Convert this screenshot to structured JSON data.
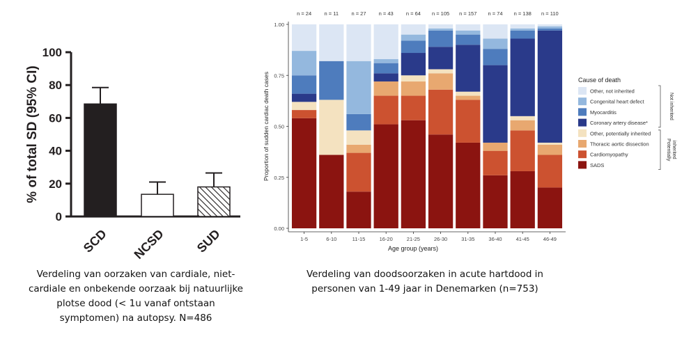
{
  "captions": {
    "left": "Verdeling van oorzaken van cardiale, niet-cardiale en onbekende oorzaak bij natuurlijke plotse dood (< 1u vanaf ontstaan symptomen) na autopsy. N=486",
    "right": "Verdeling van doodsoorzaken in acute hartdood in personen van 1-49 jaar in Denemarken (n=753)"
  },
  "chart_data": [
    {
      "type": "bar",
      "ylabel": "% of total SD (95% CI)",
      "ylim": [
        0,
        100
      ],
      "yticks": [
        "0",
        "20",
        "40",
        "60",
        "80",
        "100"
      ],
      "categories": [
        "SCD",
        "NCSD",
        "SUD"
      ],
      "values": [
        68.5,
        13.5,
        18
      ],
      "ci_upper": [
        78.5,
        21,
        26.5
      ],
      "fills": [
        "solid-black",
        "white",
        "hatched"
      ],
      "colors": {
        "solid": "#231f20",
        "outline": "#231f20"
      }
    },
    {
      "type": "bar",
      "stacked": true,
      "normalized": true,
      "xlabel": "Age group (years)",
      "ylabel": "Proportion of sudden cardiac death cases",
      "ylim": [
        0,
        1
      ],
      "yticks": [
        "0.00",
        "0.25",
        "0.50",
        "0.75",
        "1.00"
      ],
      "categories": [
        "1-5",
        "6-10",
        "11-15",
        "16-20",
        "21-25",
        "26-30",
        "31-35",
        "36-40",
        "41-45",
        "46-49"
      ],
      "n_labels": [
        "n = 24",
        "n = 11",
        "n = 27",
        "n = 43",
        "n = 64",
        "n = 105",
        "n = 157",
        "n = 74",
        "n = 138",
        "n = 110"
      ],
      "legend_title": "Cause of death",
      "legend_position": "right",
      "group_labels": [
        "Not inherited",
        "Potentially inherited"
      ],
      "series": [
        {
          "name": "SADS",
          "color": "#8b1410",
          "values": [
            0.54,
            0.36,
            0.18,
            0.51,
            0.53,
            0.46,
            0.42,
            0.26,
            0.28,
            0.2
          ]
        },
        {
          "name": "Cardiomyopathy",
          "color": "#cc5230",
          "values": [
            0.04,
            0.0,
            0.19,
            0.14,
            0.12,
            0.22,
            0.21,
            0.12,
            0.2,
            0.16
          ]
        },
        {
          "name": "Thoracic aortic dissection",
          "color": "#e8a870",
          "values": [
            0.0,
            0.0,
            0.04,
            0.07,
            0.07,
            0.08,
            0.02,
            0.04,
            0.05,
            0.05
          ]
        },
        {
          "name": "Other, potentially inherited",
          "color": "#f4e2c0",
          "values": [
            0.04,
            0.27,
            0.07,
            0.0,
            0.03,
            0.02,
            0.02,
            0.0,
            0.02,
            0.01
          ]
        },
        {
          "name": "Coronary artery disease*",
          "color": "#2a3a8a",
          "values": [
            0.04,
            0.0,
            0.0,
            0.04,
            0.11,
            0.11,
            0.23,
            0.38,
            0.38,
            0.55
          ]
        },
        {
          "name": "Myocarditis",
          "color": "#4e7cbd",
          "values": [
            0.09,
            0.19,
            0.08,
            0.05,
            0.06,
            0.08,
            0.05,
            0.08,
            0.04,
            0.01
          ]
        },
        {
          "name": "Congenital heart defect",
          "color": "#94b8de",
          "values": [
            0.12,
            0.0,
            0.26,
            0.02,
            0.03,
            0.01,
            0.02,
            0.05,
            0.01,
            0.01
          ]
        },
        {
          "name": "Other, not inherited",
          "color": "#dce6f4",
          "values": [
            0.13,
            0.18,
            0.18,
            0.17,
            0.05,
            0.02,
            0.03,
            0.07,
            0.02,
            0.01
          ]
        }
      ]
    }
  ]
}
